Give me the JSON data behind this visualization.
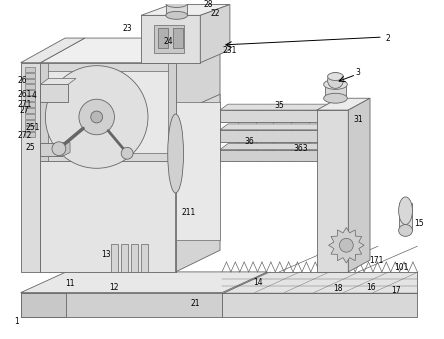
{
  "bg_color": "#ffffff",
  "lc": "#666666",
  "lc_dark": "#444444",
  "fc_light": "#f0f0f0",
  "fc_mid": "#e0e0e0",
  "fc_dark": "#c8c8c8",
  "fc_darker": "#b0b0b0"
}
